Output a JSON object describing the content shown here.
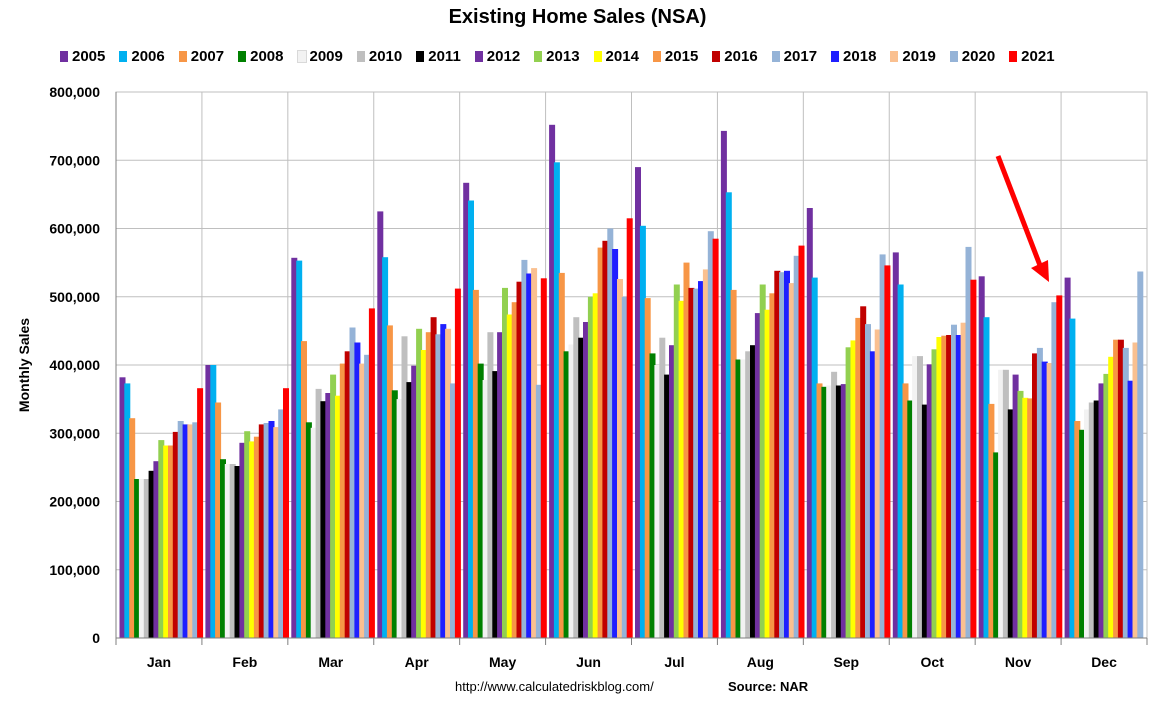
{
  "chart_data": {
    "type": "bar",
    "title": "Existing Home Sales (NSA)",
    "xlabel": "",
    "ylabel": "Monthly Sales",
    "ylim": [
      0,
      800000
    ],
    "yticks": [
      "0",
      "100,000",
      "200,000",
      "300,000",
      "400,000",
      "500,000",
      "600,000",
      "700,000",
      "800,000"
    ],
    "grid": true,
    "legend_position": "top",
    "categories": [
      "Jan",
      "Feb",
      "Mar",
      "Apr",
      "May",
      "Jun",
      "Jul",
      "Aug",
      "Sep",
      "Oct",
      "Nov",
      "Dec"
    ],
    "series": [
      {
        "name": "2005",
        "color": "#7030A0",
        "values": [
          382000,
          400000,
          557000,
          625000,
          667000,
          752000,
          690000,
          743000,
          630000,
          565000,
          530000,
          528000
        ]
      },
      {
        "name": "2006",
        "color": "#00B0F0",
        "values": [
          373000,
          400000,
          553000,
          558000,
          641000,
          697000,
          604000,
          653000,
          528000,
          518000,
          470000,
          468000
        ]
      },
      {
        "name": "2007",
        "color": "#F79646",
        "values": [
          322000,
          345000,
          435000,
          458000,
          510000,
          535000,
          498000,
          510000,
          373000,
          373000,
          343000,
          318000
        ]
      },
      {
        "name": "2008",
        "color": "#008000",
        "values": [
          233000,
          262000,
          316000,
          363000,
          402000,
          420000,
          417000,
          408000,
          368000,
          348000,
          272000,
          305000
        ]
      },
      {
        "name": "2009",
        "color": "#F2F2F2",
        "values": [
          233000,
          255000,
          308000,
          350000,
          378000,
          430000,
          400000,
          408000,
          370000,
          413000,
          393000,
          335000
        ]
      },
      {
        "name": "2010",
        "color": "#BFBFBF",
        "values": [
          233000,
          255000,
          365000,
          442000,
          448000,
          470000,
          440000,
          420000,
          390000,
          413000,
          393000,
          345000
        ]
      },
      {
        "name": "2011",
        "color": "#000000",
        "values": [
          245000,
          252000,
          347000,
          375000,
          391000,
          440000,
          386000,
          429000,
          370000,
          342000,
          335000,
          348000
        ]
      },
      {
        "name": "2012",
        "color": "#7030A0",
        "values": [
          259000,
          286000,
          359000,
          399000,
          448000,
          463000,
          429000,
          476000,
          372000,
          401000,
          386000,
          373000
        ]
      },
      {
        "name": "2013",
        "color": "#92D050",
        "values": [
          290000,
          303000,
          386000,
          453000,
          513000,
          500000,
          518000,
          518000,
          426000,
          423000,
          362000,
          387000
        ]
      },
      {
        "name": "2014",
        "color": "#FFFF00",
        "values": [
          282000,
          288000,
          355000,
          422000,
          474000,
          505000,
          494000,
          481000,
          436000,
          441000,
          352000,
          412000
        ]
      },
      {
        "name": "2015",
        "color": "#F79646",
        "values": [
          282000,
          295000,
          402000,
          448000,
          492000,
          572000,
          550000,
          505000,
          469000,
          443000,
          351000,
          437000
        ]
      },
      {
        "name": "2016",
        "color": "#C00000",
        "values": [
          302000,
          313000,
          420000,
          470000,
          522000,
          582000,
          513000,
          538000,
          486000,
          444000,
          417000,
          437000
        ]
      },
      {
        "name": "2017",
        "color": "#95B3D7",
        "values": [
          318000,
          315000,
          455000,
          445000,
          554000,
          600000,
          512000,
          536000,
          460000,
          459000,
          425000,
          425000
        ]
      },
      {
        "name": "2018",
        "color": "#1F1FFF",
        "values": [
          313000,
          318000,
          433000,
          460000,
          534000,
          570000,
          523000,
          538000,
          420000,
          444000,
          405000,
          377000
        ]
      },
      {
        "name": "2019",
        "color": "#FAC090",
        "values": [
          313000,
          309000,
          402000,
          453000,
          542000,
          526000,
          540000,
          520000,
          452000,
          462000,
          403000,
          433000
        ]
      },
      {
        "name": "2020",
        "color": "#95B3D7",
        "values": [
          316000,
          335000,
          415000,
          373000,
          371000,
          500000,
          596000,
          560000,
          562000,
          573000,
          492000,
          537000
        ]
      },
      {
        "name": "2021",
        "color": "#FF0000",
        "values": [
          366000,
          366000,
          483000,
          512000,
          527000,
          615000,
          585000,
          575000,
          546000,
          525000,
          502000,
          null
        ]
      }
    ]
  },
  "footer": {
    "url": "http://www.calculatedriskblog.com/",
    "source": "Source: NAR"
  }
}
